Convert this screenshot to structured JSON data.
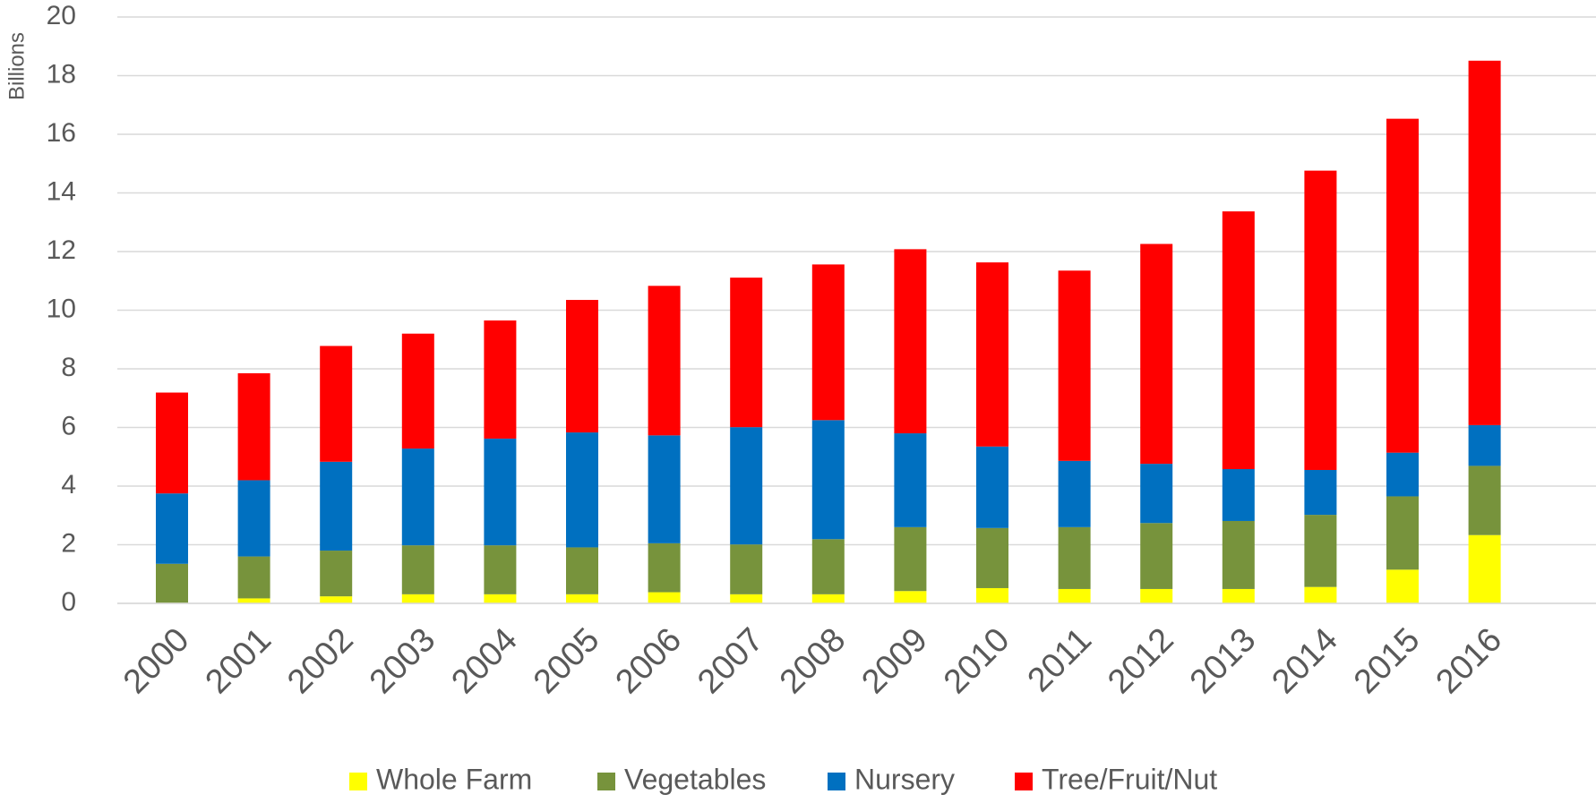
{
  "chart_data": {
    "type": "stacked-bar",
    "y_label": "Billions",
    "categories": [
      "2000",
      "2001",
      "2002",
      "2003",
      "2004",
      "2005",
      "2006",
      "2007",
      "2008",
      "2009",
      "2010",
      "2011",
      "2012",
      "2013",
      "2014",
      "2015",
      "2016"
    ],
    "series": [
      {
        "name": "Whole Farm",
        "color": "#ffff00",
        "values": [
          0.02,
          0.17,
          0.24,
          0.31,
          0.31,
          0.31,
          0.38,
          0.31,
          0.31,
          0.42,
          0.52,
          0.49,
          0.49,
          0.49,
          0.56,
          1.15,
          2.33
        ]
      },
      {
        "name": "Vegetables",
        "color": "#77933c",
        "values": [
          1.33,
          1.43,
          1.56,
          1.67,
          1.67,
          1.6,
          1.67,
          1.7,
          1.88,
          2.18,
          2.05,
          2.11,
          2.25,
          2.32,
          2.46,
          2.5,
          2.36
        ]
      },
      {
        "name": "Nursery",
        "color": "#0070c0",
        "values": [
          2.4,
          2.6,
          3.03,
          3.3,
          3.64,
          3.92,
          3.68,
          4.0,
          4.06,
          3.2,
          2.78,
          2.26,
          2.02,
          1.77,
          1.53,
          1.49,
          1.39
        ]
      },
      {
        "name": "Tree/Fruit/Nut",
        "color": "#ff0000",
        "values": [
          3.44,
          3.65,
          3.95,
          3.92,
          4.03,
          4.52,
          5.1,
          5.1,
          5.31,
          6.28,
          6.28,
          6.49,
          7.5,
          8.79,
          10.21,
          11.39,
          12.43
        ]
      }
    ],
    "ylim": [
      0,
      20
    ],
    "yticks": [
      0,
      2,
      4,
      6,
      8,
      10,
      12,
      14,
      16,
      18,
      20
    ],
    "grid": true,
    "legend": "bottom"
  }
}
